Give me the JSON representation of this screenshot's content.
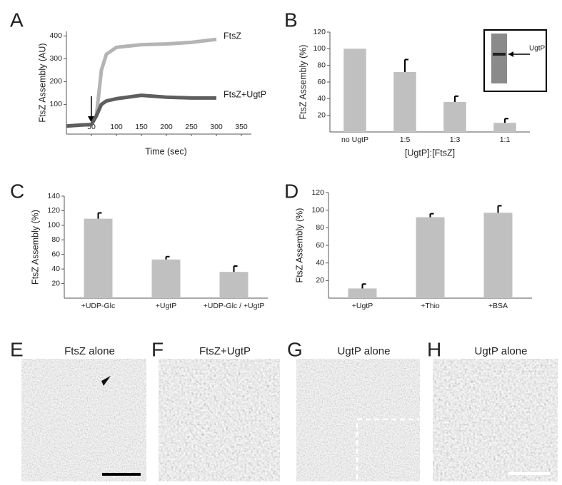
{
  "chart_data": [
    {
      "type": "line",
      "label": "A",
      "xlabel": "Time (sec)",
      "ylabel": "FtsZ Assembly (AU)",
      "x": [
        0,
        30,
        50,
        60,
        70,
        80,
        100,
        150,
        200,
        250,
        300
      ],
      "series": [
        {
          "name": "FtsZ",
          "color": "#b4b4b4",
          "values": [
            5,
            10,
            12,
            50,
            250,
            320,
            350,
            362,
            365,
            372,
            385
          ]
        },
        {
          "name": "FtsZ+UgtP",
          "color": "#5e5e5e",
          "values": [
            5,
            10,
            12,
            50,
            100,
            115,
            125,
            140,
            132,
            128,
            128
          ]
        }
      ],
      "xlim": [
        0,
        370
      ],
      "ylim": [
        -30,
        420
      ],
      "xticks": [
        50,
        100,
        150,
        200,
        250,
        300,
        350
      ],
      "yticks": [
        100,
        200,
        300,
        400
      ]
    },
    {
      "type": "bar",
      "label": "B",
      "xlabel": "[UgtP]:[FtsZ]",
      "ylabel": "FtsZ Assembly (%)",
      "categories": [
        "no UgtP",
        "1:5",
        "1:3",
        "1:1"
      ],
      "values": [
        100,
        72,
        36,
        11
      ],
      "errors": [
        0,
        15,
        7,
        5
      ],
      "color": "#c0c0c0",
      "ylim": [
        0,
        120
      ],
      "yticks": [
        20,
        40,
        60,
        80,
        100,
        120
      ],
      "inset_label": "UgtP"
    },
    {
      "type": "bar",
      "label": "C",
      "ylabel": "FtsZ Assembly (%)",
      "categories": [
        "+UDP-Glc",
        "+UgtP",
        "+UDP-Glc / +UgtP"
      ],
      "values": [
        109,
        53,
        36
      ],
      "errors": [
        8,
        4,
        8
      ],
      "color": "#c0c0c0",
      "ylim": [
        0,
        140
      ],
      "yticks": [
        20,
        40,
        60,
        80,
        100,
        120,
        140
      ]
    },
    {
      "type": "bar",
      "label": "D",
      "ylabel": "FtsZ Assembly (%)",
      "categories": [
        "+UgtP",
        "+Thio",
        "+BSA"
      ],
      "values": [
        11,
        92,
        97
      ],
      "errors": [
        5,
        4,
        8
      ],
      "color": "#c0c0c0",
      "ylim": [
        0,
        120
      ],
      "yticks": [
        20,
        40,
        60,
        80,
        100,
        120
      ]
    }
  ],
  "micrographs": [
    {
      "letter": "E",
      "title": "FtsZ alone"
    },
    {
      "letter": "F",
      "title": "FtsZ+UgtP"
    },
    {
      "letter": "G",
      "title": "UgtP alone"
    },
    {
      "letter": "H",
      "title": "UgtP alone"
    }
  ]
}
